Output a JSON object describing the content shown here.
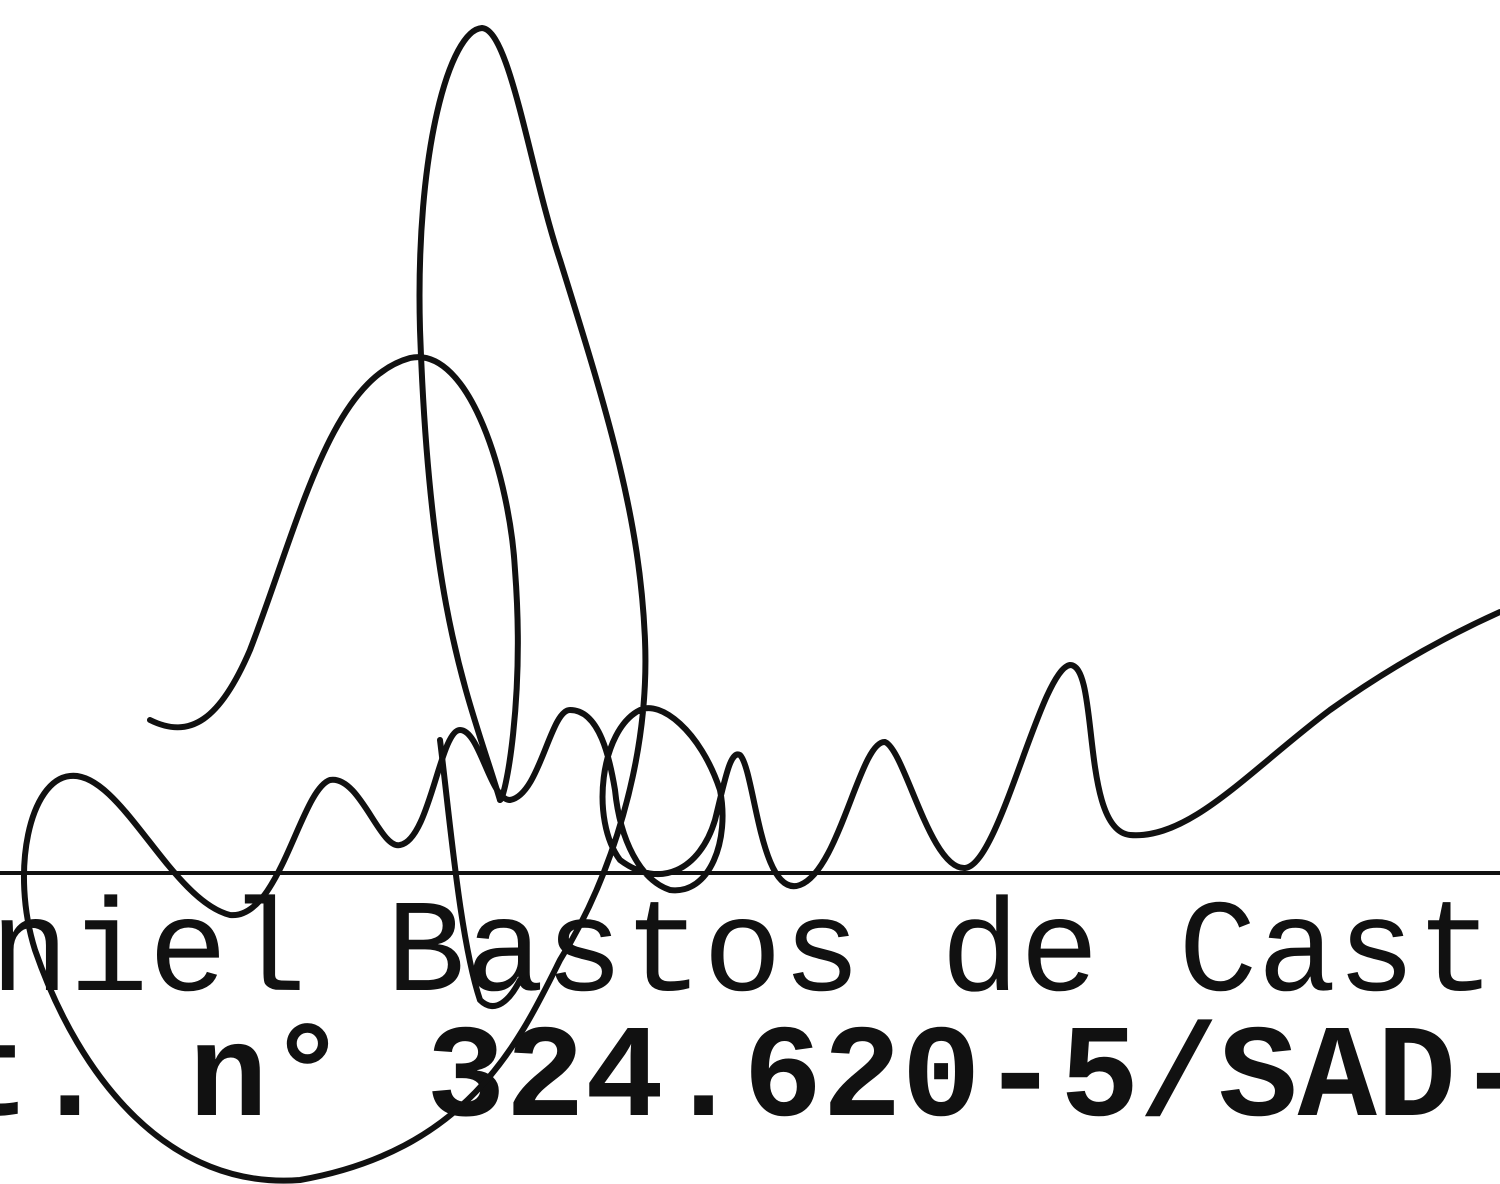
{
  "signature_block": {
    "name_line": "niel Bastos de Cast",
    "id_line": "t. n° 324.620-5/SAD-"
  }
}
